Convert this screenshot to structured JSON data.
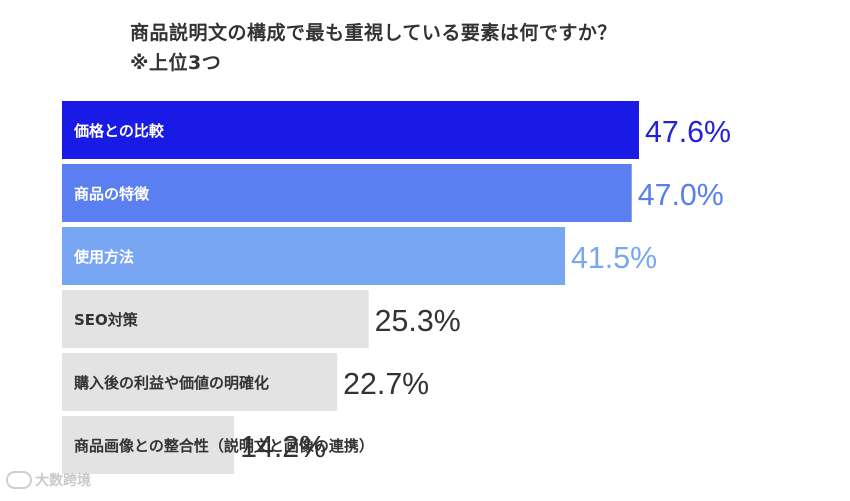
{
  "title": "商品説明文の構成で最も重視している要素は何ですか？",
  "subtitle": "※上位3つ",
  "watermark": "大数跨境",
  "colors": {
    "bar_top1": "#1a1ae6",
    "bar_top2": "#5b7ff0",
    "bar_top3": "#78a6f3",
    "bar_other": "#e3e3e3",
    "label_light": "#ffffff",
    "label_dark": "#333333",
    "value_top1": "#2323d6",
    "value_top2": "#5a7fe8",
    "value_top3": "#78a6f3",
    "value_other": "#333333"
  },
  "chart_data": {
    "type": "bar",
    "orientation": "horizontal",
    "categories": [
      "価格との比較",
      "商品の特徴",
      "使用方法",
      "SEO対策",
      "購入後の利益や価値の明確化",
      "商品画像との整合性（説明文と画像の連携）"
    ],
    "values": [
      47.6,
      47.0,
      41.5,
      25.3,
      22.7,
      14.2
    ],
    "value_labels": [
      "47.6%",
      "47.0%",
      "41.5%",
      "25.3%",
      "22.7%",
      "14.2%"
    ],
    "unit": "%",
    "title": "商品説明文の構成で最も重視している要素は何ですか？",
    "subtitle": "※上位3つ"
  }
}
